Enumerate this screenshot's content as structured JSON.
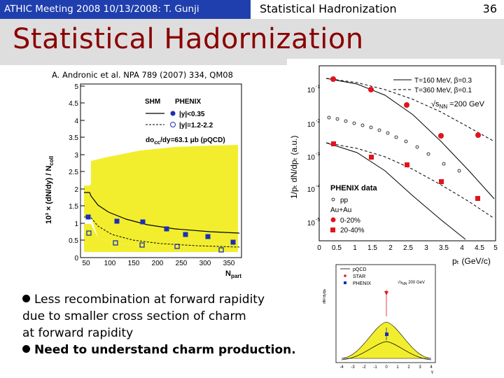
{
  "header": {
    "left_text": "ATHIC Meeting 2008 10/13/2008: T. Gunji",
    "center_text": "Statistical Hadronization",
    "page_number": "36"
  },
  "slide": {
    "title": "Statistical Hadornization",
    "citation": "A. Andronic et al. NPA 789 (2007) 334, QM08"
  },
  "left_plot": {
    "ylabel": "10³ × (dN/dy) / N",
    "ylabel_sub_jpsi": "J/ψ",
    "ylabel_sub_coll": "coll",
    "xlabel": "N",
    "xlabel_sub": "part",
    "legend": {
      "shm": "SHM",
      "phenix": "PHENIX",
      "mid": "|y|<0.35",
      "fwd": "|y|=1.2-2.2",
      "pqcd": "do",
      "pqcd_sub": "cc",
      "pqcd_rest": "/dy=63.1 μb (pQCD)"
    },
    "colors": {
      "band": "#f2ee2e",
      "mid": "#1a2fb5",
      "fwd": "#1a2fb5"
    }
  },
  "right_top_plot": {
    "ylabel": "1/pₜ dN/dpₜ (a.u.)",
    "xlabel": "pₜ (GeV/c)",
    "legend": {
      "t160": "T=160 MeV, β=0.3",
      "t360": "T=360 MeV, β=0.1",
      "energy": "√s",
      "energy_sub": "NN",
      "energy_rest": " =200 GeV",
      "phenix": "PHENIX data",
      "pp": "pp",
      "auau": "Au+Au",
      "c0": "0-20%",
      "c20": "20-40%"
    },
    "colors": {
      "data": "#e0141e"
    }
  },
  "right_bottom_plot": {
    "legend": {
      "pqcd": "pQCD",
      "star": "STAR",
      "phenix": "PHENIX",
      "energy": "√s",
      "energy_sub": "NN",
      "energy_rest": " 200 GeV"
    },
    "ylabel": "dN²/dydpₜ",
    "xlabel": "y",
    "colors": {
      "band": "#f2ee2e",
      "star": "#e0141e",
      "phenix": "#1a2fb5"
    }
  },
  "bullets": {
    "line1": "Less recombination at forward rapidity",
    "line2": "due to smaller cross section of charm",
    "line3": "at forward rapidity",
    "line4": "Need to understand charm production."
  }
}
